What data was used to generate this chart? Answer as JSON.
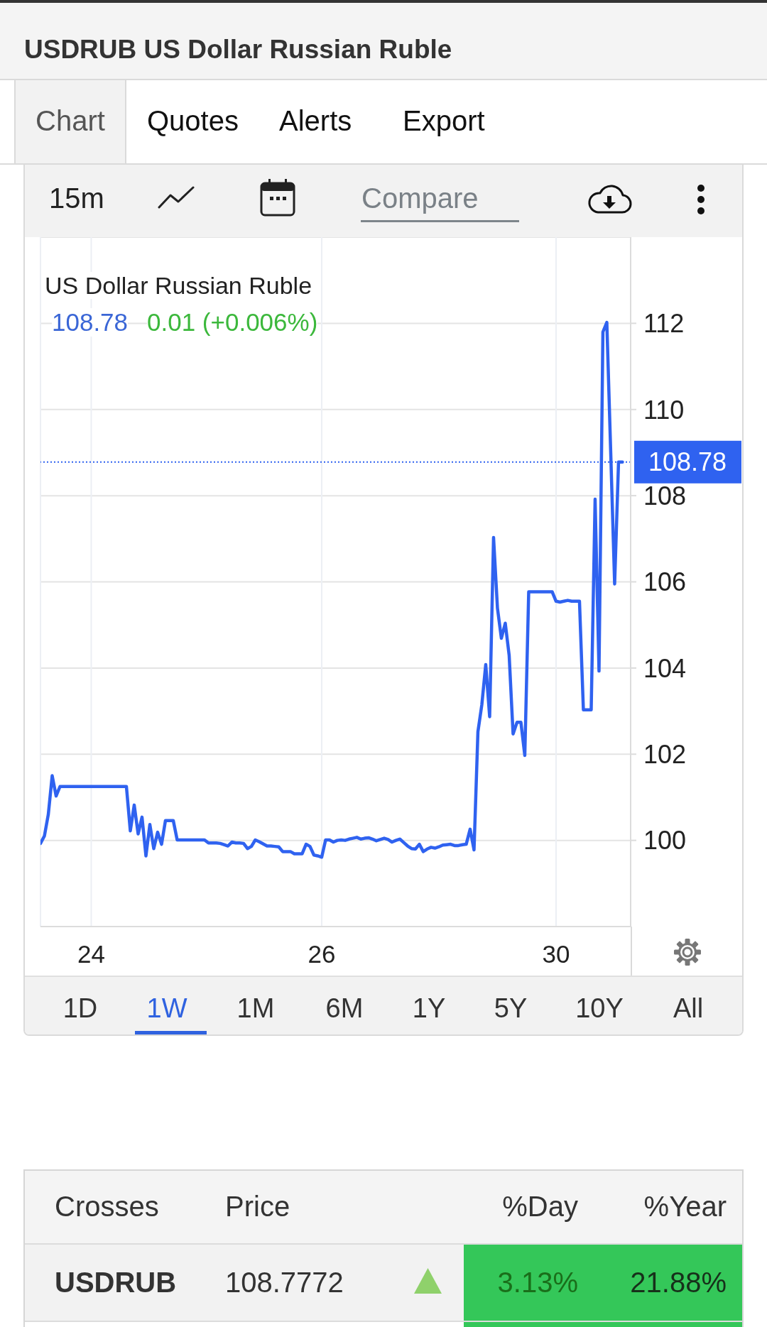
{
  "chart_data": {
    "type": "line",
    "title": "USDRUB US Dollar Russian Ruble",
    "subtitle": "US Dollar Russian Ruble",
    "annotations": [
      "Chart",
      "Quotes",
      "Alerts",
      "Export",
      "15m",
      "Compare",
      "108.78",
      "0.01 (+0.006%)",
      "1D",
      "1W",
      "1M",
      "6M",
      "1Y",
      "5Y",
      "10Y",
      "All",
      "Crosses",
      "Price",
      "%Day",
      "%Year",
      "USDRUB",
      "108.7772",
      "3.13%",
      "21.88%"
    ],
    "categories": [
      null,
      null,
      null,
      null,
      null,
      null,
      null,
      null,
      null,
      null,
      null,
      null,
      null,
      "24",
      null,
      null,
      null,
      null,
      null,
      null,
      null,
      null,
      null,
      null,
      null,
      null,
      null,
      null,
      null,
      null,
      null,
      null,
      null,
      null,
      null,
      null,
      null,
      null,
      null,
      null,
      null,
      null,
      null,
      null,
      null,
      null,
      null,
      null,
      null,
      null,
      null,
      null,
      null,
      null,
      null,
      null,
      null,
      null,
      null,
      null,
      null,
      null,
      null,
      null,
      null,
      null,
      null,
      null,
      null,
      null,
      null,
      null,
      "26",
      null,
      null,
      null,
      null,
      null,
      null,
      null,
      null,
      null,
      null,
      null,
      null,
      null,
      null,
      null,
      null,
      null,
      null,
      null,
      null,
      null,
      null,
      null,
      null,
      null,
      null,
      null,
      null,
      null,
      null,
      null,
      null,
      null,
      null,
      null,
      null,
      null,
      null,
      null,
      null,
      null,
      null,
      null,
      null,
      null,
      null,
      null,
      null,
      null,
      null,
      null,
      null,
      null,
      null,
      null,
      null,
      null,
      null,
      null,
      "30",
      null,
      null,
      null,
      null,
      null,
      null,
      null,
      null,
      null,
      null,
      null,
      null,
      null,
      null,
      null,
      null,
      null
    ],
    "values": [
      99.93,
      100.1,
      100.6,
      101.5,
      101.03,
      101.25,
      101.25,
      101.25,
      101.25,
      101.25,
      101.25,
      101.25,
      101.25,
      101.25,
      101.25,
      101.25,
      101.25,
      101.25,
      101.25,
      101.25,
      101.25,
      101.25,
      101.25,
      100.22,
      100.82,
      100.15,
      100.54,
      99.64,
      100.37,
      99.81,
      100.19,
      99.91,
      100.46,
      100.46,
      100.46,
      100.01,
      100.01,
      100.01,
      100.01,
      100.01,
      100.01,
      100.01,
      100.01,
      99.94,
      99.94,
      99.94,
      99.93,
      99.9,
      99.87,
      99.96,
      99.94,
      99.94,
      99.93,
      99.81,
      99.86,
      100.01,
      99.97,
      99.92,
      99.87,
      99.87,
      99.86,
      99.85,
      99.74,
      99.74,
      99.74,
      99.69,
      99.69,
      99.69,
      99.91,
      99.86,
      99.66,
      99.64,
      99.61,
      100.01,
      100.01,
      99.96,
      100.0,
      100.01,
      100.0,
      100.03,
      100.05,
      100.07,
      100.03,
      100.05,
      100.06,
      100.03,
      99.99,
      100.02,
      100.05,
      100.02,
      99.96,
      100.0,
      100.03,
      99.95,
      99.87,
      99.81,
      99.8,
      99.91,
      99.74,
      99.8,
      99.84,
      99.82,
      99.85,
      99.89,
      99.9,
      99.91,
      99.88,
      99.88,
      99.9,
      99.91,
      100.26,
      99.78,
      102.52,
      103.15,
      104.08,
      102.87,
      107.03,
      105.39,
      104.69,
      105.04,
      104.29,
      102.47,
      102.74,
      102.74,
      101.97,
      105.77,
      105.77,
      105.77,
      105.77,
      105.77,
      105.77,
      105.77,
      105.55,
      105.53,
      105.55,
      105.57,
      105.55,
      105.55,
      105.55,
      103.03,
      103.03,
      103.03,
      107.92,
      103.93,
      111.8,
      112.02,
      109,
      105.95,
      108.78,
      108.78
    ],
    "color": "#2f62f0",
    "ylim": [
      98,
      114
    ],
    "yticks": [
      100,
      102,
      104,
      106,
      108,
      110,
      112
    ],
    "grid": true,
    "ref_lines": [
      {
        "axis": "y",
        "value": 108.78,
        "label": "108.78",
        "color": "#2f62f0",
        "line_style": "dotted"
      }
    ]
  }
}
